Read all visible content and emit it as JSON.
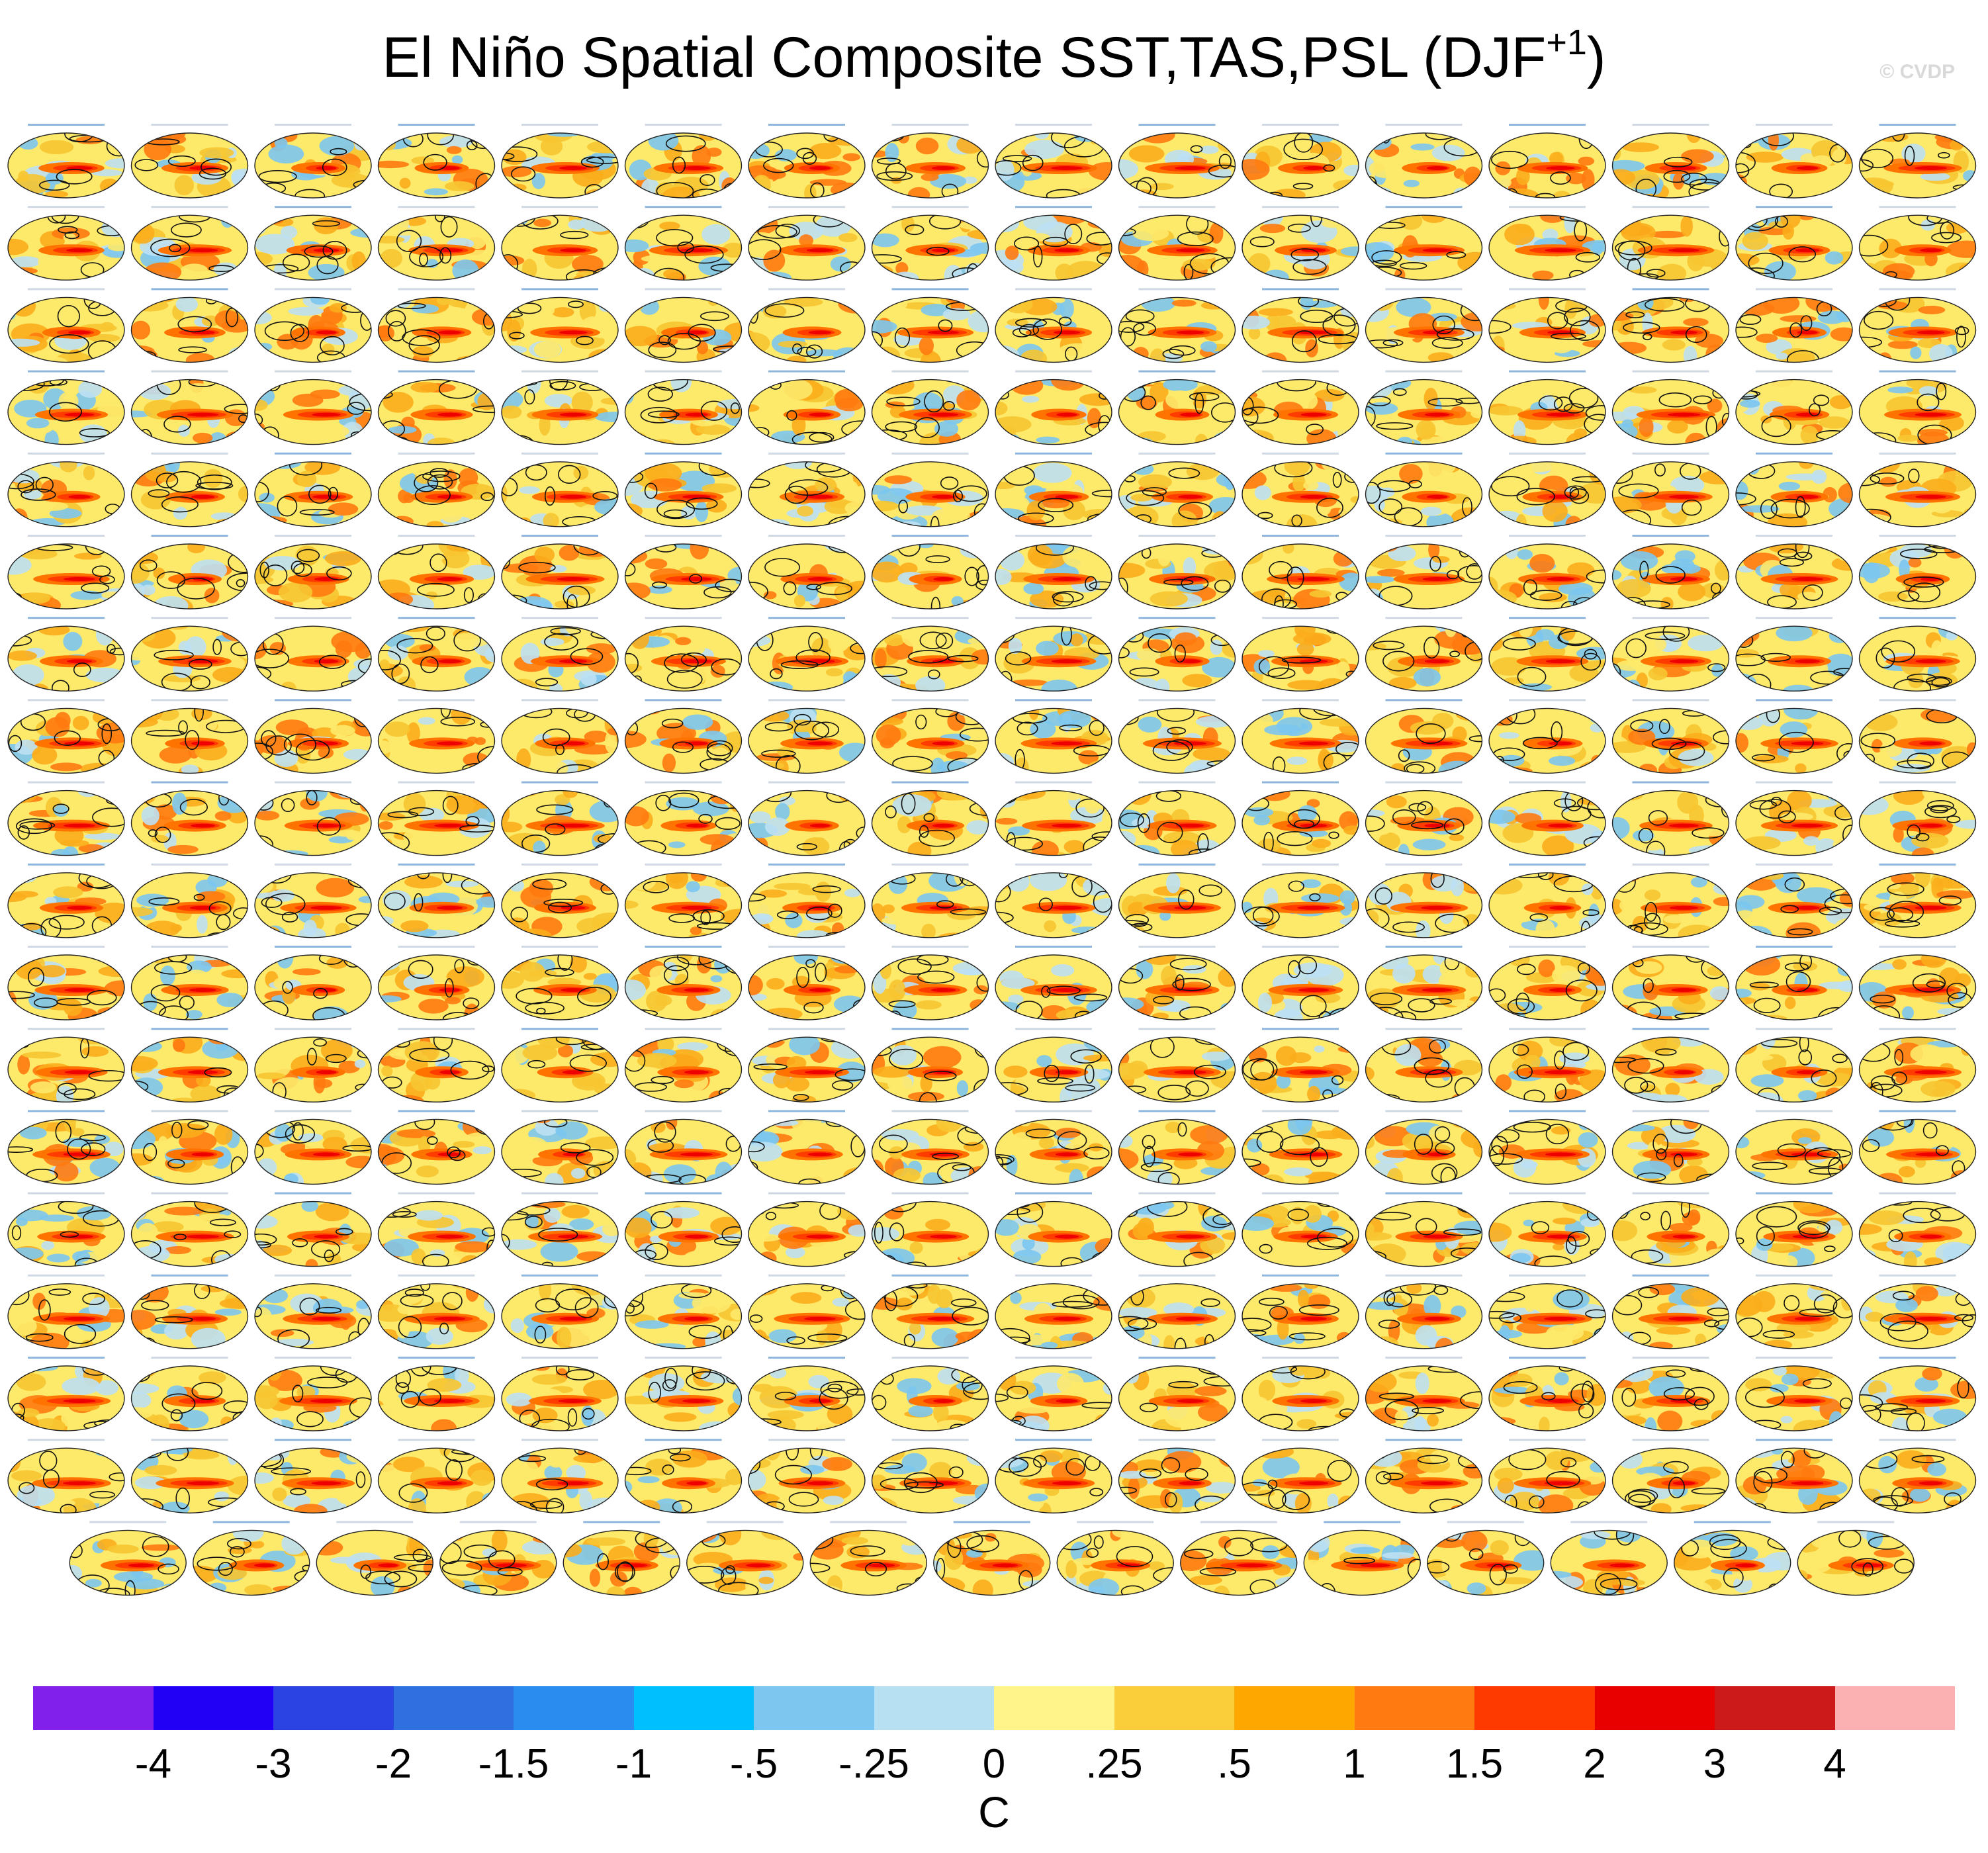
{
  "figure": {
    "title_main": "El Niño Spatial Composite SST,TAS,PSL (DJF",
    "title_sup": "+1",
    "title_close": ")",
    "watermark": "© CVDP"
  },
  "chart_data": {
    "type": "heatmap",
    "title": "El Niño Spatial Composite SST,TAS,PSL (DJF+1)",
    "panel_layout": {
      "rows_full": 17,
      "columns": 16,
      "last_row_panels": 15,
      "total_panels": 287
    },
    "panel_fill_colors": [
      "#fde96a",
      "#f7c531",
      "#fbad1c",
      "#bde0f3",
      "#7cc6f0",
      "#ff7a10"
    ],
    "enso_tongue_colors": [
      "#ff7300",
      "#ff3b00",
      "#ee0000"
    ],
    "contour_color": "#111111",
    "colorbar": {
      "unit": "C",
      "tick_labels": [
        "-4",
        "-3",
        "-2",
        "-1.5",
        "-1",
        "-.5",
        "-.25",
        "0",
        ".25",
        ".5",
        "1",
        "1.5",
        "2",
        "3",
        "4"
      ],
      "colors": [
        "#8020ea",
        "#2200f5",
        "#2b43e3",
        "#2f6fdf",
        "#2b8cf0",
        "#00bfff",
        "#7cc6f0",
        "#b7e0f2",
        "#fff48a",
        "#f9ce3a",
        "#fda700",
        "#ff7a10",
        "#ff3a00",
        "#e80000",
        "#cc1a1a",
        "#fbb1b1"
      ]
    }
  }
}
